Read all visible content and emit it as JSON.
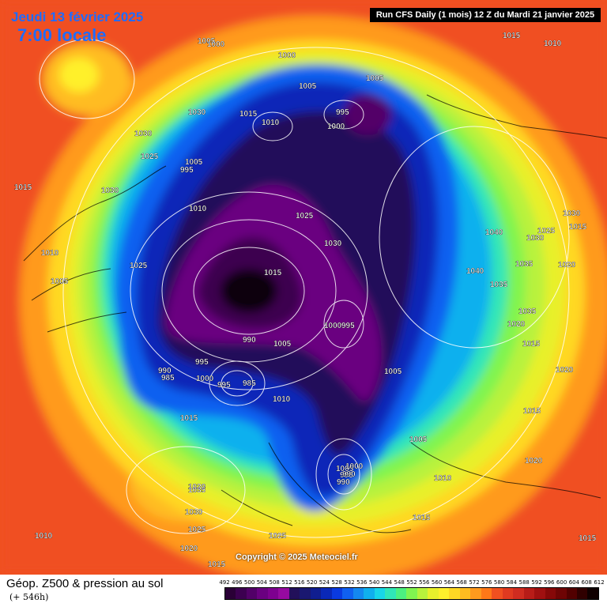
{
  "header": {
    "date_title": "Jeudi 13 février 2025",
    "time_title": "7:00 locale",
    "run_info": "Run CFS Daily (1 mois) 12 Z du Mardi 21 janvier 2025"
  },
  "copyright": "Copyright © 2025 Meteociel.fr",
  "footer": {
    "title": "Géop. Z500 & pression au sol",
    "subtitle": "(+ 546h)"
  },
  "colors": {
    "scale": [
      "#2a0036",
      "#3c0050",
      "#520068",
      "#6a0080",
      "#7e0090",
      "#960aa0",
      "#22105a",
      "#1a1870",
      "#101e90",
      "#0a28b8",
      "#0a3ae0",
      "#1060f0",
      "#1488f0",
      "#10b0ee",
      "#18d6e8",
      "#30e6b8",
      "#4cf080",
      "#80f450",
      "#b8f23c",
      "#e8f02c",
      "#fff02c",
      "#ffd824",
      "#ffbc20",
      "#ff9a1e",
      "#ff7818",
      "#f05020",
      "#e03a20",
      "#d02c20",
      "#b81c18",
      "#a01010",
      "#860808",
      "#6e0404",
      "#520000",
      "#300000",
      "#100000"
    ],
    "background": "#f05020"
  },
  "legend_values": [
    "492",
    "496",
    "500",
    "504",
    "508",
    "512",
    "516",
    "520",
    "524",
    "528",
    "532",
    "536",
    "540",
    "544",
    "548",
    "552",
    "556",
    "560",
    "564",
    "568",
    "572",
    "576",
    "580",
    "584",
    "588",
    "592",
    "596",
    "600",
    "604",
    "608",
    "612"
  ],
  "pressure_labels": [
    "1005",
    "1000",
    "1015",
    "1010",
    "1000",
    "1030",
    "1005",
    "1030",
    "995",
    "1000",
    "1005",
    "1015",
    "1025",
    "1005",
    "995",
    "1015",
    "1030",
    "1025",
    "1010",
    "1030",
    "1030",
    "1015",
    "1040",
    "1025",
    "1030",
    "1010",
    "1025",
    "1020",
    "1035",
    "1005",
    "1015",
    "1040",
    "1035",
    "1020",
    "1000",
    "995",
    "1035",
    "1020",
    "990",
    "1005",
    "1015",
    "995",
    "1010",
    "990",
    "985",
    "1000",
    "995",
    "985",
    "1005",
    "1015",
    "1015",
    "1005",
    "1020",
    "1005",
    "995",
    "990",
    "1010",
    "1020",
    "1035",
    "1030",
    "1015",
    "1025",
    "1025",
    "1010",
    "1020",
    "1015",
    "1015",
    "1010",
    "990",
    "1000"
  ]
}
